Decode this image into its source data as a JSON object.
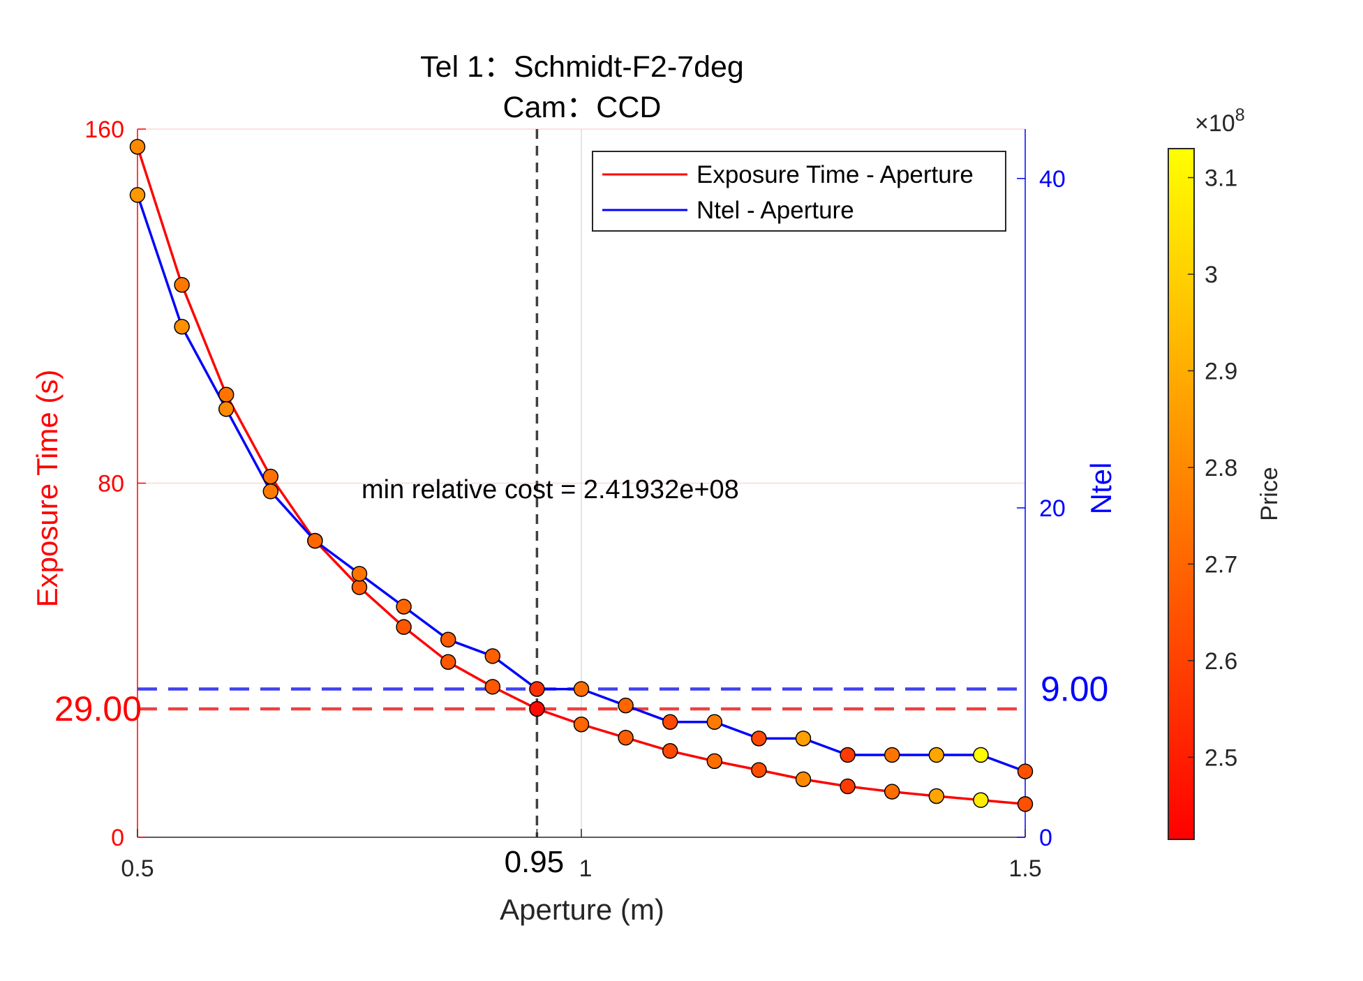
{
  "chart_data": {
    "type": "line",
    "title_lines": [
      "Tel 1：Schmidt-F2-7deg",
      "Cam：CCD"
    ],
    "xlabel": "Aperture (m)",
    "ylabel_left": "Exposure Time (s)",
    "ylabel_right": "Ntel",
    "xlim": [
      0.5,
      1.5
    ],
    "ylim_left": [
      0,
      160
    ],
    "ylim_right": [
      0,
      43
    ],
    "x_ticks": [
      0.5,
      0.95,
      1,
      1.5
    ],
    "x_tick_labels": [
      "0.5",
      "0.95",
      "1",
      "1.5"
    ],
    "y_left_ticks": [
      0,
      80,
      160
    ],
    "y_left_tick_labels": [
      "0",
      "80",
      "160"
    ],
    "y_right_ticks": [
      0,
      20,
      40
    ],
    "y_right_tick_labels": [
      "0",
      "20",
      "40"
    ],
    "x": [
      0.5,
      0.55,
      0.6,
      0.65,
      0.7,
      0.75,
      0.8,
      0.85,
      0.9,
      0.95,
      1.0,
      1.05,
      1.1,
      1.15,
      1.2,
      1.25,
      1.3,
      1.35,
      1.4,
      1.45,
      1.5
    ],
    "series": [
      {
        "name": "Exposure Time - Aperture",
        "axis": "left",
        "color": "#ff0000",
        "values": [
          156,
          124.8,
          100,
          81.5,
          67,
          56.5,
          47.5,
          39.6,
          34,
          29,
          25.5,
          22.5,
          19.5,
          17.2,
          15.2,
          13.1,
          11.5,
          10.3,
          9.3,
          8.4,
          7.5
        ]
      },
      {
        "name": "Ntel - Aperture",
        "axis": "right",
        "color": "#0000ff",
        "values": [
          39,
          31,
          26,
          21,
          18,
          16,
          14,
          12,
          11,
          9,
          9,
          8,
          7,
          7,
          6,
          6,
          5,
          5,
          5,
          5,
          4
        ]
      }
    ],
    "price_exposure_points": [
      2.8,
      2.75,
      2.74,
      2.73,
      2.7,
      2.68,
      2.66,
      2.66,
      2.66,
      2.44,
      2.7,
      2.68,
      2.62,
      2.72,
      2.63,
      2.8,
      2.58,
      2.72,
      2.88,
      3.08,
      2.64
    ],
    "price_ntel_points": [
      2.84,
      2.82,
      2.8,
      2.76,
      2.7,
      2.74,
      2.7,
      2.67,
      2.68,
      2.55,
      2.72,
      2.7,
      2.62,
      2.76,
      2.62,
      2.86,
      2.58,
      2.74,
      2.88,
      3.12,
      2.64
    ],
    "min_point": {
      "aperture": 0.95,
      "exposure": 29.0,
      "ntel": 9.0
    },
    "min_aperture_label": "0.95",
    "min_exposure_label": "29.00",
    "min_ntel_label": "9.00",
    "annotation": "min relative cost = 2.41932e+08",
    "legend": {
      "location": "top-right",
      "entries": [
        "Exposure Time - Aperture",
        "Ntel - Aperture"
      ]
    },
    "grid": {
      "y_left": [
        80,
        160
      ],
      "x": [
        1.0
      ]
    },
    "colorbar": {
      "label": "Price",
      "range": [
        2.415,
        3.13
      ],
      "ticks": [
        2.5,
        2.6,
        2.7,
        2.8,
        2.9,
        3.0,
        3.1
      ],
      "tick_labels": [
        "2.5",
        "2.6",
        "2.7",
        "2.8",
        "2.9",
        "3",
        "3.1"
      ],
      "exponent_label": "×10",
      "exponent_power": "8",
      "colormap": "autumn"
    },
    "colors": {
      "left_axis": "#ff0000",
      "right_axis": "#0000ff",
      "axis": "#262626",
      "grid_left": "#ffd6d6",
      "grid_x": "#dcdcdc",
      "min_vline": "#404040",
      "min_hline_left": "#f04040",
      "min_hline_right": "#4040f0"
    }
  }
}
